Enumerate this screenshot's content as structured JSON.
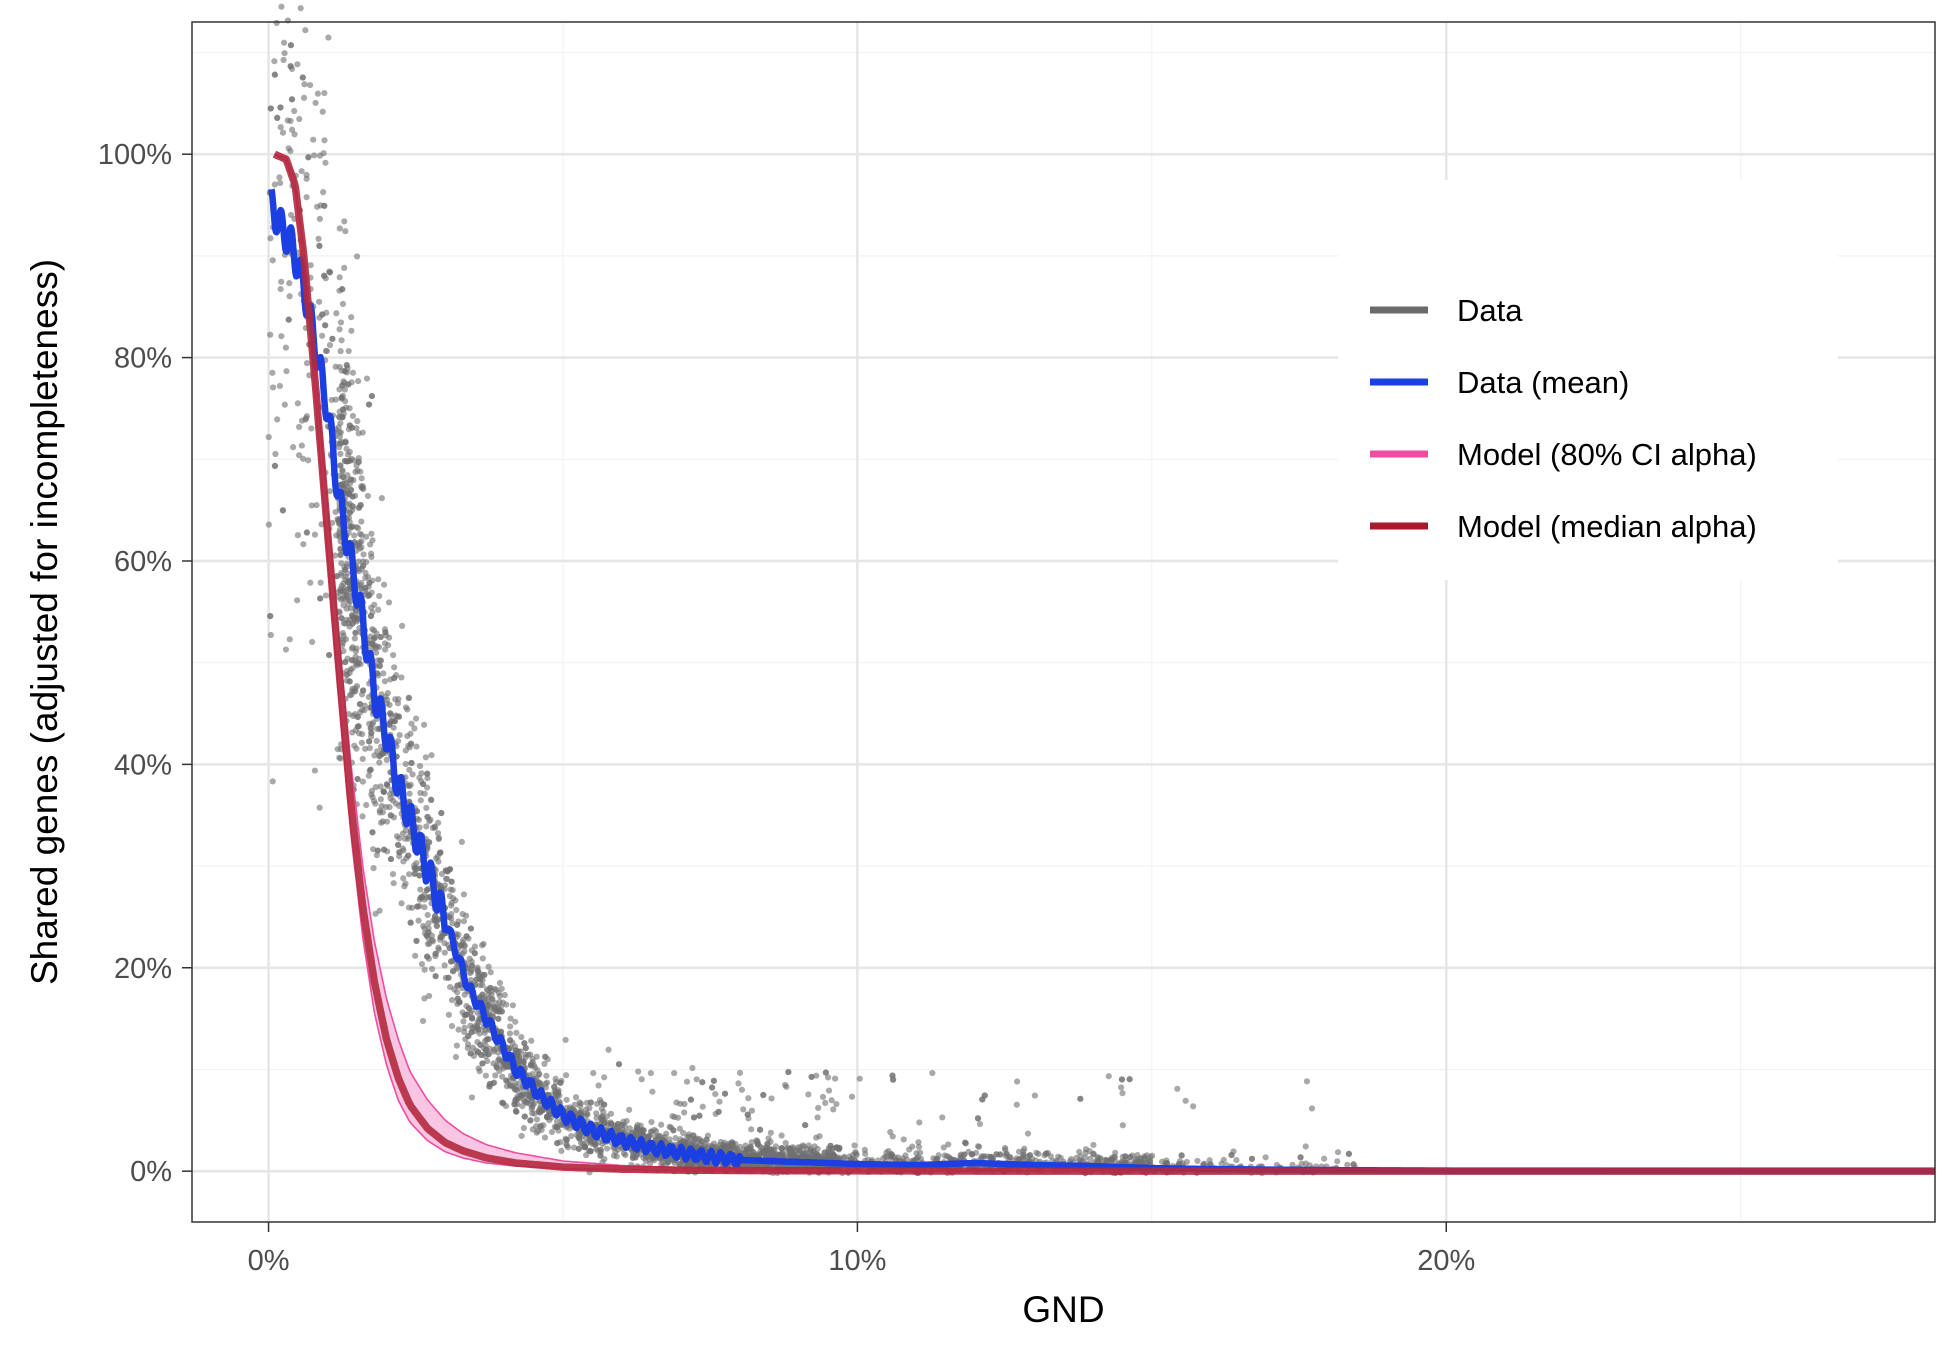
{
  "chart_data": {
    "type": "scatter",
    "title": "",
    "xlabel": "GND",
    "ylabel": "Shared genes (adjusted for incompleteness)",
    "xlim": [
      -1.3,
      28.3
    ],
    "ylim": [
      -5,
      113
    ],
    "x_ticks": [
      0,
      10,
      20
    ],
    "x_tick_labels": [
      "0%",
      "10%",
      "20%"
    ],
    "y_ticks": [
      0,
      20,
      40,
      60,
      80,
      100
    ],
    "y_tick_labels": [
      "0%",
      "20%",
      "40%",
      "60%",
      "80%",
      "100%"
    ],
    "grid": true,
    "legend_position": "right-top-inside",
    "legend": [
      {
        "label": "Data",
        "color": "#6b6b6b"
      },
      {
        "label": "Data (mean)",
        "color": "#1b3fe0"
      },
      {
        "label": "Model (80% CI alpha)",
        "color": "#f04ca0"
      },
      {
        "label": "Model (median alpha)",
        "color": "#a8192e"
      }
    ],
    "colors": {
      "data_points": "#707070",
      "mean_line": "#1b3fe0",
      "ci_fill": "#f5b3d8",
      "ci_line": "#f04ca0",
      "median_line": "#b2293e"
    },
    "series": [
      {
        "name": "Data (mean)",
        "x": [
          0.05,
          0.2,
          0.4,
          0.6,
          0.8,
          1.0,
          1.2,
          1.4,
          1.6,
          1.8,
          2.0,
          2.2,
          2.5,
          2.8,
          3.1,
          3.4,
          3.8,
          4.2,
          4.6,
          5.0,
          5.5,
          6.0,
          6.5,
          7.0,
          7.5,
          8.0,
          9.0,
          10.0,
          11.0,
          12.0,
          13.0,
          14.0,
          15.0,
          16.0,
          18.0,
          20.0,
          24.0,
          28.3
        ],
        "y": [
          95,
          93,
          91,
          87,
          81,
          75,
          66,
          60,
          54,
          47,
          43,
          38,
          33,
          28,
          23,
          18,
          14,
          10,
          7.5,
          5.5,
          4,
          3,
          2.3,
          1.8,
          1.4,
          1.1,
          0.9,
          0.7,
          0.6,
          0.8,
          0.6,
          0.5,
          0.3,
          0.2,
          0.1,
          0.05,
          0.02,
          0.01
        ]
      },
      {
        "name": "Model (median alpha)",
        "x": [
          0.1,
          0.3,
          0.45,
          0.6,
          0.8,
          1.0,
          1.2,
          1.4,
          1.6,
          1.8,
          2.0,
          2.2,
          2.4,
          2.7,
          3.0,
          3.3,
          3.7,
          4.2,
          5.0,
          6.0,
          7.0,
          8.0,
          10.0,
          12.0,
          15.0,
          20.0,
          28.3
        ],
        "y": [
          100,
          99.5,
          97,
          90,
          77,
          63,
          49,
          36,
          26,
          18.5,
          13,
          9.2,
          6.5,
          4.2,
          2.8,
          2.0,
          1.3,
          0.8,
          0.4,
          0.2,
          0.1,
          0.06,
          0.03,
          0.01,
          0.005,
          0.002,
          0.001
        ]
      },
      {
        "name": "Model (80% CI alpha)",
        "x": [
          0.1,
          0.3,
          0.45,
          0.6,
          0.8,
          1.0,
          1.2,
          1.4,
          1.6,
          1.8,
          2.0,
          2.2,
          2.4,
          2.7,
          3.0,
          3.3,
          3.7,
          4.2,
          5.0,
          6.0,
          7.0,
          8.0,
          10.0,
          12.0,
          15.0,
          20.0,
          28.3
        ],
        "y_low": [
          100,
          99.3,
          96.5,
          89,
          75.5,
          60.5,
          46,
          33,
          23,
          15.5,
          10.5,
          7.0,
          4.8,
          3.0,
          1.9,
          1.3,
          0.8,
          0.5,
          0.25,
          0.12,
          0.06,
          0.03,
          0.01,
          0.005,
          0.002,
          0.001,
          0.001
        ],
        "y_high": [
          100,
          99.7,
          97.5,
          91,
          78.5,
          65.5,
          52,
          40,
          30,
          22.5,
          17,
          13,
          9.8,
          7.0,
          5.0,
          3.7,
          2.6,
          1.8,
          1.0,
          0.55,
          0.3,
          0.18,
          0.08,
          0.04,
          0.015,
          0.005,
          0.002
        ]
      },
      {
        "name": "Data",
        "point_count": 4200,
        "description_of_spread": "dense cloud around the mean curve; spread shrinks with GND; points up to ~107% near 0 and sparse tail to ~18%"
      }
    ]
  }
}
